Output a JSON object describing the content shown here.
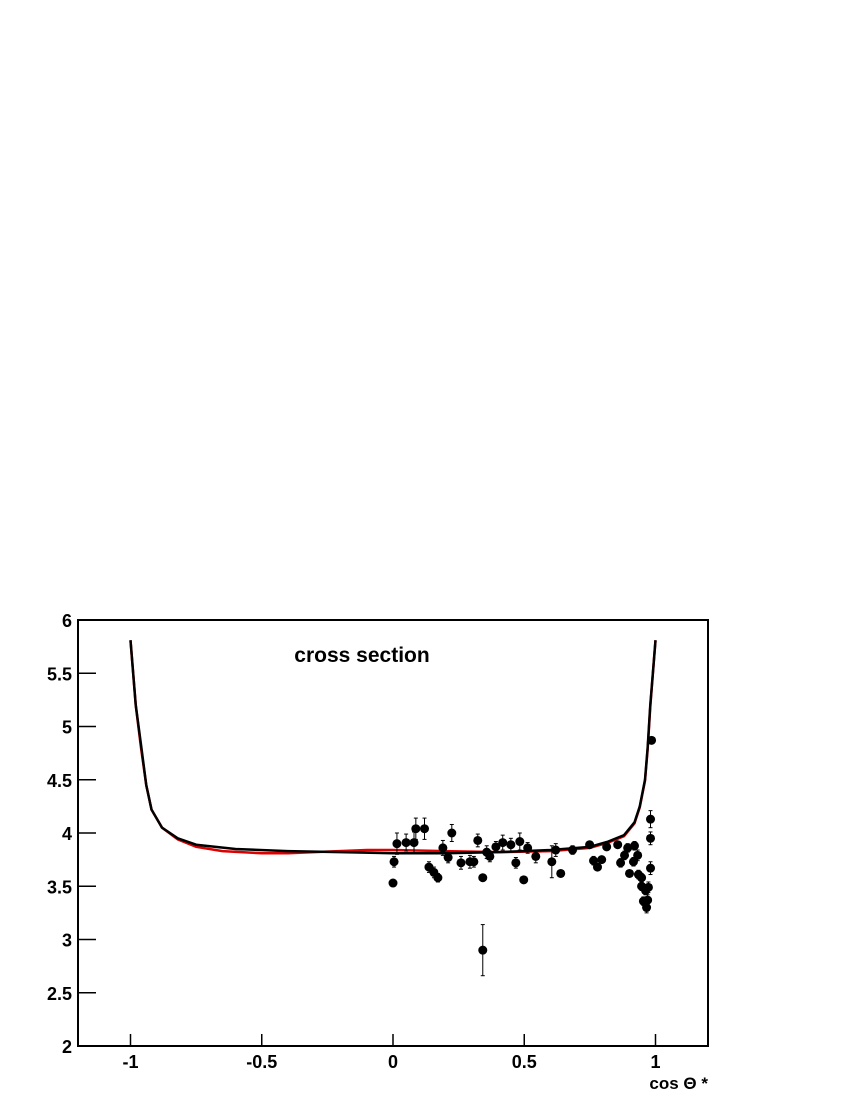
{
  "chart_data": {
    "type": "scatter",
    "title": "cross section",
    "x_label": "cos Θ *",
    "xlim": [
      -1.2,
      1.2
    ],
    "ylim": [
      2,
      6
    ],
    "xticks": [
      -1,
      -0.5,
      0,
      0.5,
      1
    ],
    "yticks": [
      2,
      2.5,
      3,
      3.5,
      4,
      4.5,
      5,
      5.5,
      6
    ],
    "series": [
      {
        "type": "line",
        "color": "#dd0000",
        "x": [
          -1,
          -0.98,
          -0.96,
          -0.94,
          -0.92,
          -0.88,
          -0.82,
          -0.75,
          -0.65,
          -0.5,
          -0.4,
          -0.3,
          -0.1,
          0,
          0.2,
          0.4,
          0.6,
          0.75,
          0.82,
          0.88,
          0.92,
          0.94,
          0.96,
          0.97,
          0.98,
          0.99,
          1
        ],
        "values": [
          5.81,
          5.2,
          4.8,
          4.45,
          4.22,
          4.05,
          3.94,
          3.87,
          3.83,
          3.81,
          3.81,
          3.82,
          3.84,
          3.84,
          3.83,
          3.82,
          3.83,
          3.86,
          3.91,
          3.97,
          4.09,
          4.24,
          4.49,
          4.78,
          5.18,
          5.5,
          5.81
        ]
      },
      {
        "type": "line",
        "color": "#000000",
        "x": [
          -1,
          -0.98,
          -0.96,
          -0.94,
          -0.92,
          -0.88,
          -0.82,
          -0.75,
          -0.6,
          -0.4,
          -0.2,
          0,
          0.2,
          0.4,
          0.6,
          0.75,
          0.82,
          0.88,
          0.92,
          0.94,
          0.96,
          0.97,
          0.98,
          0.99,
          1
        ],
        "values": [
          5.81,
          5.2,
          4.83,
          4.45,
          4.22,
          4.05,
          3.95,
          3.89,
          3.85,
          3.83,
          3.82,
          3.81,
          3.81,
          3.82,
          3.84,
          3.87,
          3.92,
          3.98,
          4.1,
          4.25,
          4.5,
          4.8,
          5.2,
          5.5,
          5.81
        ]
      },
      {
        "type": "scatter",
        "color": "#000000",
        "x": [
          0.0,
          0.004,
          0.015,
          0.05,
          0.08,
          0.087,
          0.12,
          0.137,
          0.156,
          0.171,
          0.19,
          0.21,
          0.224,
          0.259,
          0.293,
          0.308,
          0.323,
          0.342,
          0.342,
          0.357,
          0.369,
          0.392,
          0.418,
          0.449,
          0.468,
          0.483,
          0.498,
          0.513,
          0.544,
          0.605,
          0.62,
          0.639,
          0.684,
          0.749,
          0.764,
          0.779,
          0.795,
          0.814,
          0.856,
          0.867,
          0.882,
          0.894,
          0.901,
          0.916,
          0.92,
          0.932,
          0.935,
          0.947,
          0.947,
          0.954,
          0.962,
          0.966,
          0.97,
          0.973,
          0.981,
          0.981,
          0.981,
          0.985
        ],
        "values": [
          3.53,
          3.73,
          3.9,
          3.91,
          3.91,
          4.04,
          4.04,
          3.68,
          3.63,
          3.58,
          3.86,
          3.77,
          4.0,
          3.72,
          3.73,
          3.73,
          3.93,
          3.58,
          2.9,
          3.82,
          3.78,
          3.87,
          3.91,
          3.89,
          3.72,
          3.92,
          3.56,
          3.86,
          3.78,
          3.73,
          3.84,
          3.62,
          3.84,
          3.89,
          3.74,
          3.68,
          3.75,
          3.87,
          3.89,
          3.72,
          3.79,
          3.86,
          3.62,
          3.73,
          3.88,
          3.79,
          3.61,
          3.58,
          3.5,
          3.36,
          3.46,
          3.3,
          3.37,
          3.49,
          3.67,
          3.95,
          4.13,
          4.87
        ],
        "errors": [
          0.03,
          0.05,
          0.1,
          0.08,
          0.1,
          0.1,
          0.1,
          0.05,
          0.05,
          0.04,
          0.07,
          0.05,
          0.08,
          0.06,
          0.06,
          0.05,
          0.06,
          0.03,
          0.24,
          0.06,
          0.05,
          0.05,
          0.07,
          0.06,
          0.05,
          0.08,
          0.03,
          0.05,
          0.06,
          0.15,
          0.06,
          0.03,
          0.04,
          0.03,
          0.04,
          0.03,
          0.03,
          0.03,
          0.03,
          0.04,
          0.04,
          0.04,
          0.03,
          0.04,
          0.04,
          0.05,
          0.04,
          0.04,
          0.04,
          0.04,
          0.04,
          0.05,
          0.05,
          0.05,
          0.06,
          0.06,
          0.08,
          0.03
        ]
      }
    ]
  }
}
